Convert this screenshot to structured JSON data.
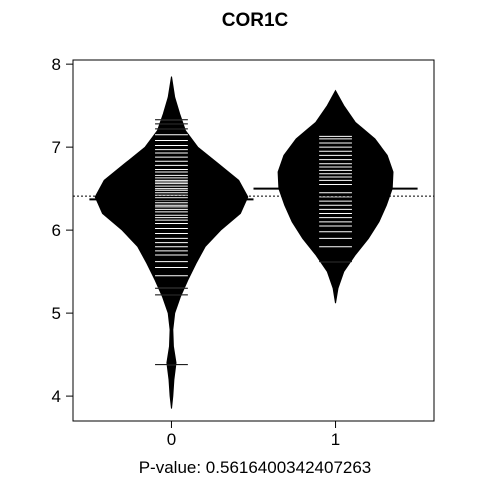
{
  "chart_data": {
    "type": "beanplot",
    "title": "COR1C",
    "xlabel": "P-value: 0.5616400342407263",
    "ylabel": "",
    "categories": [
      "0",
      "1"
    ],
    "ylim": [
      3.7,
      8.05
    ],
    "xlim": [
      -0.6,
      1.6
    ],
    "yticks": [
      4,
      5,
      6,
      7,
      8
    ],
    "overall_mean": 6.41,
    "grid": false,
    "legend": "none",
    "beans": [
      {
        "category": "0",
        "mean": 6.37,
        "range": [
          3.85,
          7.85
        ],
        "density": [
          [
            3.85,
            0.0
          ],
          [
            4.0,
            0.008
          ],
          [
            4.2,
            0.015
          ],
          [
            4.4,
            0.028
          ],
          [
            4.6,
            0.012
          ],
          [
            4.8,
            0.008
          ],
          [
            5.0,
            0.02
          ],
          [
            5.2,
            0.055
          ],
          [
            5.4,
            0.1
          ],
          [
            5.6,
            0.15
          ],
          [
            5.8,
            0.205
          ],
          [
            6.0,
            0.3
          ],
          [
            6.2,
            0.42
          ],
          [
            6.4,
            0.465
          ],
          [
            6.6,
            0.41
          ],
          [
            6.8,
            0.285
          ],
          [
            7.0,
            0.16
          ],
          [
            7.2,
            0.085
          ],
          [
            7.4,
            0.05
          ],
          [
            7.6,
            0.02
          ],
          [
            7.85,
            0.0
          ]
        ],
        "values": [
          4.38,
          5.22,
          5.3,
          5.45,
          5.55,
          5.62,
          5.7,
          5.75,
          5.8,
          5.85,
          5.9,
          5.96,
          6.02,
          6.08,
          6.12,
          6.15,
          6.18,
          6.22,
          6.25,
          6.28,
          6.3,
          6.33,
          6.36,
          6.39,
          6.42,
          6.45,
          6.48,
          6.5,
          6.53,
          6.56,
          6.58,
          6.6,
          6.63,
          6.66,
          6.7,
          6.73,
          6.78,
          6.83,
          6.88,
          6.93,
          6.97,
          7.02,
          7.08,
          7.15,
          7.22,
          7.28,
          7.33
        ]
      },
      {
        "category": "1",
        "mean": 6.5,
        "range": [
          5.12,
          7.68
        ],
        "density": [
          [
            5.12,
            0.0
          ],
          [
            5.3,
            0.015
          ],
          [
            5.5,
            0.05
          ],
          [
            5.7,
            0.12
          ],
          [
            5.9,
            0.2
          ],
          [
            6.1,
            0.265
          ],
          [
            6.3,
            0.31
          ],
          [
            6.5,
            0.345
          ],
          [
            6.7,
            0.35
          ],
          [
            6.9,
            0.315
          ],
          [
            7.1,
            0.24
          ],
          [
            7.3,
            0.12
          ],
          [
            7.5,
            0.05
          ],
          [
            7.68,
            0.0
          ]
        ],
        "values": [
          5.62,
          5.8,
          5.9,
          5.98,
          6.05,
          6.1,
          6.15,
          6.2,
          6.25,
          6.3,
          6.35,
          6.4,
          6.45,
          6.5,
          6.55,
          6.6,
          6.64,
          6.68,
          6.72,
          6.76,
          6.8,
          6.85,
          6.9,
          6.95,
          7.0,
          7.05,
          7.1,
          7.13
        ]
      }
    ]
  }
}
